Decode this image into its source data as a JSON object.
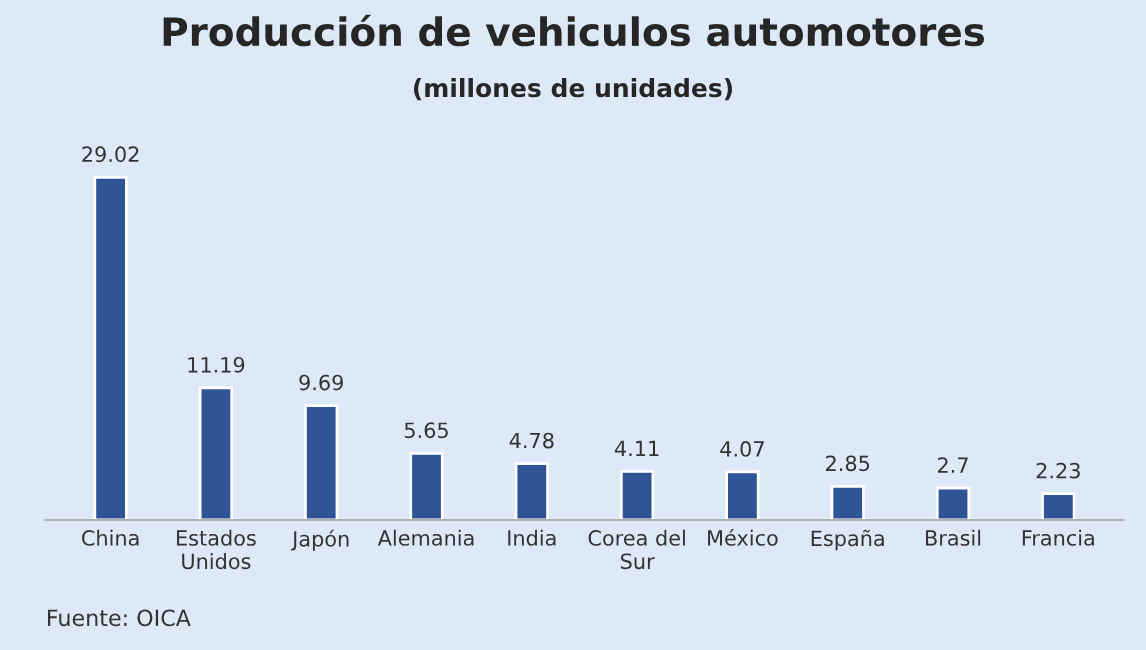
{
  "chart_data": {
    "type": "bar",
    "title": "Producción de vehiculos automotores",
    "subtitle": "(millones de unidades)",
    "categories": [
      "China",
      "Estados\nUnidos",
      "Japón",
      "Alemania",
      "India",
      "Corea del\nSur",
      "México",
      "España",
      "Brasil",
      "Francia"
    ],
    "values": [
      29.02,
      11.19,
      9.69,
      5.65,
      4.78,
      4.11,
      4.07,
      2.85,
      2.7,
      2.23
    ],
    "color": "#2f5597",
    "data_labels": true,
    "grid": false,
    "legend": false,
    "annotations": [
      "Fuente: OICA"
    ]
  }
}
